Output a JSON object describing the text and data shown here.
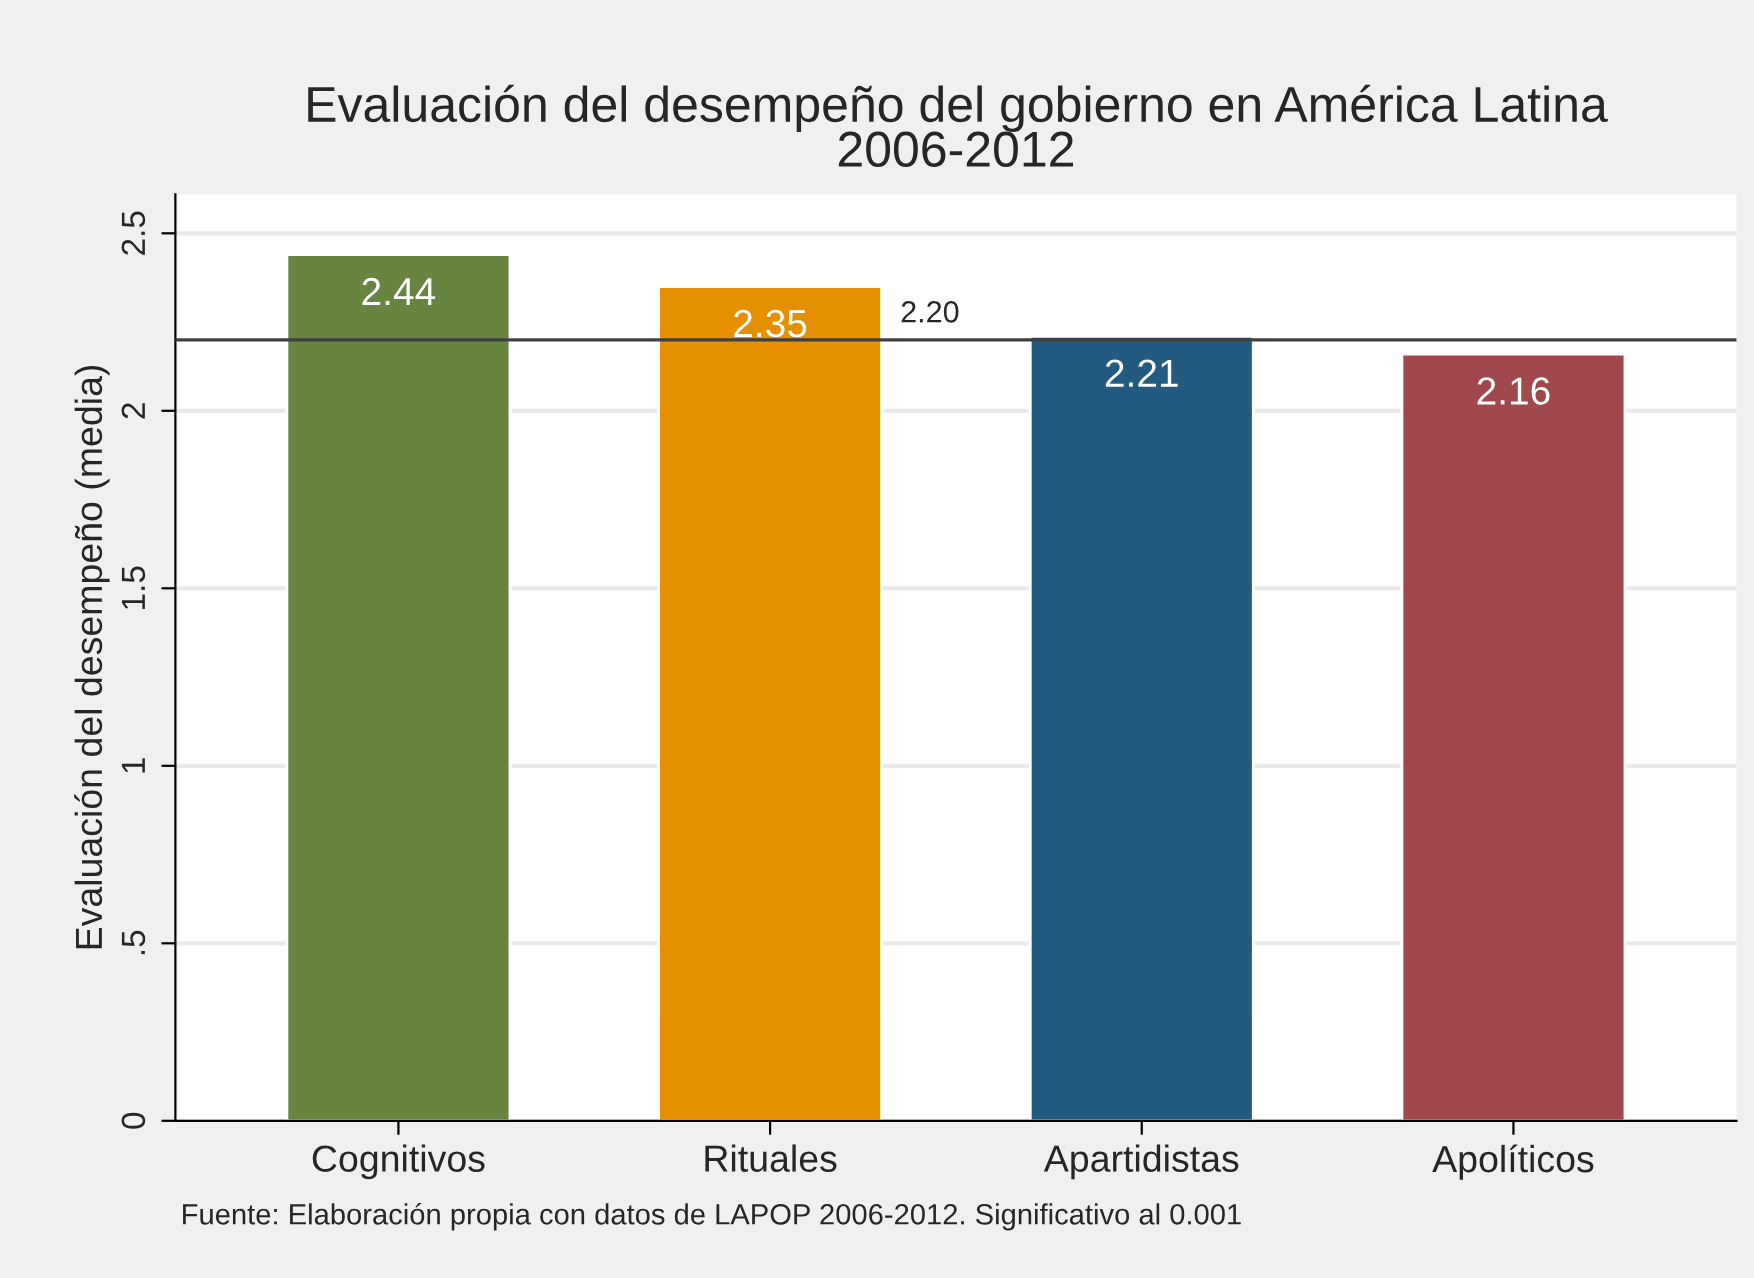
{
  "chart_data": {
    "type": "bar",
    "title": "Evaluación del desempeño del gobierno en América Latina\n2006-2012",
    "ylabel": "Evaluación del desempeño (media)",
    "categories": [
      "Cognitivos",
      "Rituales",
      "Apartidistas",
      "Apolíticos"
    ],
    "values": [
      2.44,
      2.35,
      2.21,
      2.16
    ],
    "colors": [
      "#678540",
      "#e69000",
      "#225a80",
      "#a0484b"
    ],
    "data_labels": true,
    "ylim": [
      0,
      2.61
    ],
    "yticks": [
      0,
      {
        "value": 0.5,
        "label": ".5"
      },
      1,
      1.5,
      2,
      2.5
    ],
    "grid": "y",
    "ref_lines": [
      {
        "axis": "y",
        "value": 2.2,
        "label": "2.20",
        "color": "#404040"
      }
    ],
    "annotations": [
      "Fuente: Elaboración propia con datos de LAPOP 2006-2012. Significativo al 0.001"
    ]
  }
}
